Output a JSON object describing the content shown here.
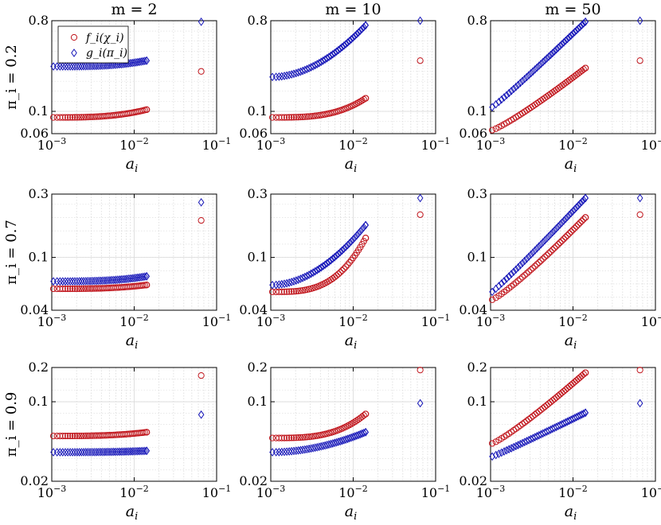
{
  "colors": {
    "f_series": "#c0141b",
    "g_series": "#1616b8",
    "grid": "#d9d9d9",
    "axes": "#000000"
  },
  "column_titles": [
    "m = 2",
    "m = 10",
    "m = 50"
  ],
  "row_labels": [
    "π_i = 0.2",
    "π_i = 0.7",
    "π_i = 0.9"
  ],
  "legend": {
    "entries": [
      "f_i(χ_i)",
      "g_i(π_i)"
    ],
    "placement": "top-left of first panel"
  },
  "chart_data": {
    "type": "scatter",
    "x_scale": "log",
    "y_scale": "log",
    "grid": true,
    "xlabel": "a_i",
    "xlim": [
      0.001,
      0.1
    ],
    "x_ticks": [
      0.001,
      0.01,
      0.1
    ],
    "x_tick_labels": [
      "10^-3",
      "10^-2",
      "10^-1"
    ],
    "series_names": [
      "f_i(χ_i)",
      "g_i(π_i)"
    ],
    "markers": {
      "f_i(χ_i)": "circle",
      "g_i(π_i)": "diamond"
    },
    "rows": [
      {
        "ylim": [
          0.06,
          0.8
        ],
        "yticks": [
          "0.06",
          "0.1",
          "0.8"
        ],
        "panels": [
          {
            "title": "m = 2",
            "f_low": 0.087,
            "f_high": 0.104,
            "f_out": 0.25,
            "g_low": 0.28,
            "g_high": 0.32,
            "g_out": 0.78
          },
          {
            "title": "m = 10",
            "f_low": 0.087,
            "f_high": 0.135,
            "f_out": 0.32,
            "g_low": 0.22,
            "g_high": 0.72,
            "g_out": 0.8
          },
          {
            "title": "m = 50",
            "f_low": 0.065,
            "f_high": 0.27,
            "f_out": 0.32,
            "g_low": 0.11,
            "g_high": 0.78,
            "g_out": 0.8
          }
        ]
      },
      {
        "ylim": [
          0.04,
          0.3
        ],
        "yticks": [
          "0.04",
          "0.1",
          "0.3"
        ],
        "panels": [
          {
            "title": "m = 2",
            "f_low": 0.058,
            "f_high": 0.062,
            "f_out": 0.19,
            "g_low": 0.066,
            "g_high": 0.072,
            "g_out": 0.26
          },
          {
            "title": "m = 10",
            "f_low": 0.055,
            "f_high": 0.14,
            "f_out": 0.21,
            "g_low": 0.062,
            "g_high": 0.175,
            "g_out": 0.28
          },
          {
            "title": "m = 50",
            "f_low": 0.048,
            "f_high": 0.2,
            "f_out": 0.21,
            "g_low": 0.055,
            "g_high": 0.28,
            "g_out": 0.28
          }
        ]
      },
      {
        "ylim": [
          0.02,
          0.2
        ],
        "yticks": [
          "0.02",
          "0.1",
          "0.2"
        ],
        "panels": [
          {
            "title": "m = 2",
            "f_low": 0.05,
            "f_high": 0.054,
            "f_out": 0.17,
            "g_low": 0.036,
            "g_high": 0.037,
            "g_out": 0.077
          },
          {
            "title": "m = 10",
            "f_low": 0.048,
            "f_high": 0.078,
            "f_out": 0.19,
            "g_low": 0.036,
            "g_high": 0.054,
            "g_out": 0.097
          },
          {
            "title": "m = 50",
            "f_low": 0.043,
            "f_high": 0.18,
            "f_out": 0.19,
            "g_low": 0.033,
            "g_high": 0.08,
            "g_out": 0.097
          }
        ]
      }
    ]
  }
}
